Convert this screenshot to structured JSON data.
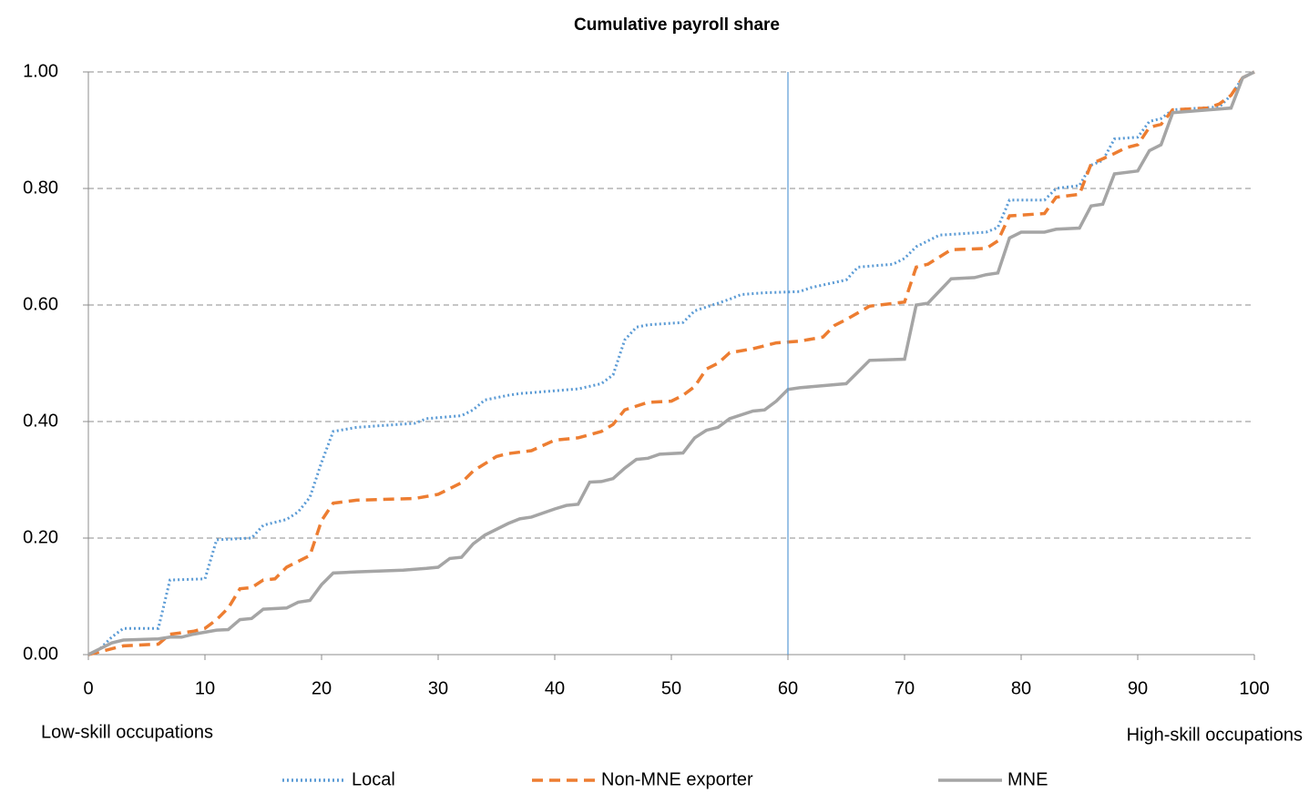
{
  "chart_data": {
    "type": "line",
    "title": "Cumulative payroll share",
    "annotations": [
      "Low-skill occupations",
      "High-skill occupations"
    ],
    "xlim": [
      0,
      100
    ],
    "xticks": [
      0,
      10,
      20,
      30,
      40,
      50,
      60,
      70,
      80,
      90,
      100
    ],
    "ylim": [
      0,
      1
    ],
    "yticks": [
      {
        "value": 0,
        "label": "0.00"
      },
      {
        "value": 0.2,
        "label": "0.20"
      },
      {
        "value": 0.4,
        "label": "0.40"
      },
      {
        "value": 0.6,
        "label": "0.60"
      },
      {
        "value": 0.8,
        "label": "0.80"
      },
      {
        "value": 1,
        "label": "1.00"
      }
    ],
    "grid": true,
    "reference_x": 60,
    "reference_color": "#5b9bd5",
    "legend": "bottom",
    "series": [
      {
        "name": "Local",
        "color": "#5b9bd5",
        "style": "dotted",
        "x": [
          0,
          1,
          2,
          3,
          6,
          7,
          10,
          11,
          14,
          15,
          17,
          18,
          19,
          20,
          21,
          23,
          28,
          29,
          32,
          33,
          34,
          36,
          37,
          42,
          44,
          45,
          46,
          47,
          48,
          51,
          52,
          54,
          55,
          56,
          58,
          61,
          62,
          65,
          66,
          69,
          70,
          71,
          72,
          73,
          77,
          78,
          79,
          82,
          83,
          85,
          86,
          87,
          88,
          90,
          91,
          92,
          93,
          97,
          98,
          99,
          100
        ],
        "values": [
          0,
          0.01,
          0.03,
          0.045,
          0.045,
          0.128,
          0.13,
          0.197,
          0.2,
          0.222,
          0.232,
          0.245,
          0.27,
          0.33,
          0.383,
          0.39,
          0.397,
          0.405,
          0.41,
          0.42,
          0.437,
          0.445,
          0.448,
          0.456,
          0.465,
          0.48,
          0.54,
          0.562,
          0.566,
          0.57,
          0.59,
          0.603,
          0.61,
          0.618,
          0.621,
          0.623,
          0.63,
          0.643,
          0.665,
          0.67,
          0.68,
          0.7,
          0.71,
          0.72,
          0.725,
          0.733,
          0.78,
          0.78,
          0.8,
          0.805,
          0.84,
          0.848,
          0.885,
          0.888,
          0.915,
          0.92,
          0.935,
          0.94,
          0.96,
          0.99,
          1.0
        ]
      },
      {
        "name": "Non-MNE exporter",
        "color": "#ed7d31",
        "style": "dashed",
        "x": [
          0,
          1,
          2,
          3,
          6,
          7,
          9,
          10,
          11,
          12,
          13,
          14,
          15,
          16,
          17,
          18,
          19,
          20,
          21,
          23,
          28,
          30,
          31,
          32,
          33,
          35,
          36,
          38,
          40,
          42,
          44,
          45,
          46,
          48,
          50,
          51,
          52,
          53,
          54,
          55,
          57,
          59,
          61,
          63,
          64,
          65,
          67,
          70,
          71,
          72,
          74,
          77,
          78,
          79,
          82,
          83,
          85,
          86,
          88,
          89,
          90,
          91,
          92,
          93,
          96,
          97,
          98,
          99,
          100
        ],
        "values": [
          0,
          0.005,
          0.01,
          0.015,
          0.018,
          0.035,
          0.04,
          0.045,
          0.06,
          0.08,
          0.113,
          0.115,
          0.128,
          0.13,
          0.15,
          0.16,
          0.17,
          0.23,
          0.26,
          0.265,
          0.268,
          0.275,
          0.285,
          0.295,
          0.315,
          0.34,
          0.345,
          0.35,
          0.368,
          0.372,
          0.383,
          0.395,
          0.42,
          0.433,
          0.435,
          0.445,
          0.46,
          0.49,
          0.5,
          0.518,
          0.525,
          0.535,
          0.538,
          0.545,
          0.565,
          0.575,
          0.598,
          0.605,
          0.665,
          0.67,
          0.695,
          0.697,
          0.71,
          0.753,
          0.757,
          0.785,
          0.79,
          0.842,
          0.86,
          0.87,
          0.875,
          0.905,
          0.91,
          0.935,
          0.938,
          0.945,
          0.96,
          0.99,
          1.0
        ]
      },
      {
        "name": "MNE",
        "color": "#a5a5a5",
        "style": "solid",
        "x": [
          0,
          1,
          2,
          3,
          6,
          7,
          8,
          9,
          11,
          12,
          13,
          14,
          15,
          17,
          18,
          19,
          20,
          21,
          23,
          27,
          29,
          30,
          31,
          32,
          33,
          34,
          36,
          37,
          38,
          40,
          41,
          42,
          43,
          44,
          45,
          46,
          47,
          48,
          49,
          51,
          52,
          53,
          54,
          55,
          57,
          58,
          59,
          60,
          61,
          65,
          66,
          67,
          70,
          71,
          72,
          74,
          76,
          77,
          78,
          79,
          80,
          82,
          83,
          85,
          86,
          87,
          88,
          90,
          91,
          92,
          93,
          98,
          99,
          100
        ],
        "values": [
          0,
          0.01,
          0.02,
          0.025,
          0.027,
          0.03,
          0.03,
          0.035,
          0.042,
          0.043,
          0.06,
          0.062,
          0.078,
          0.08,
          0.09,
          0.093,
          0.12,
          0.14,
          0.142,
          0.145,
          0.148,
          0.15,
          0.165,
          0.167,
          0.19,
          0.205,
          0.225,
          0.233,
          0.236,
          0.25,
          0.256,
          0.258,
          0.296,
          0.297,
          0.302,
          0.32,
          0.335,
          0.337,
          0.344,
          0.346,
          0.372,
          0.385,
          0.39,
          0.405,
          0.418,
          0.42,
          0.435,
          0.455,
          0.458,
          0.465,
          0.485,
          0.505,
          0.507,
          0.6,
          0.603,
          0.645,
          0.647,
          0.652,
          0.655,
          0.715,
          0.725,
          0.725,
          0.73,
          0.732,
          0.77,
          0.773,
          0.825,
          0.83,
          0.865,
          0.875,
          0.93,
          0.938,
          0.99,
          1.0
        ]
      }
    ]
  }
}
